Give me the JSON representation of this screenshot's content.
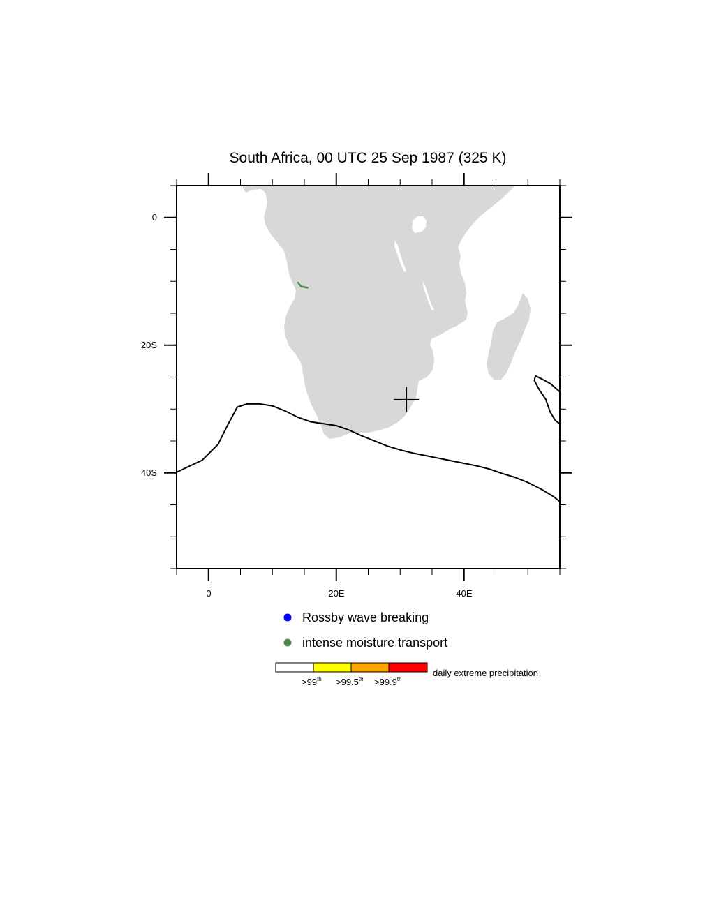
{
  "title": "South Africa, 00 UTC 25 Sep 1987 (325 K)",
  "map": {
    "lon_range": [
      -5,
      55
    ],
    "lat_range": [
      -55,
      5
    ],
    "x_ticks": [
      {
        "lon": 0,
        "label": "0"
      },
      {
        "lon": 20,
        "label": "20E"
      },
      {
        "lon": 40,
        "label": "40E"
      }
    ],
    "y_ticks": [
      {
        "lat": 0,
        "label": "0"
      },
      {
        "lat": -20,
        "label": "20S"
      },
      {
        "lat": -40,
        "label": "40S"
      }
    ],
    "land_color": "#d8d8d8",
    "cross_marker": {
      "lon": 31,
      "lat": -28.5
    },
    "moisture_transport_path": [
      [
        14,
        -10.2
      ],
      [
        14.5,
        -10.8
      ],
      [
        15.5,
        -11
      ]
    ],
    "moisture_color": "#4f8a4f",
    "contour_main": [
      [
        -5,
        -39.9
      ],
      [
        -1,
        -38
      ],
      [
        1.5,
        -35.5
      ],
      [
        3,
        -32.5
      ],
      [
        4.5,
        -29.7
      ],
      [
        6,
        -29.2
      ],
      [
        8,
        -29.2
      ],
      [
        10,
        -29.5
      ],
      [
        12,
        -30.3
      ],
      [
        14,
        -31.3
      ],
      [
        16,
        -32
      ],
      [
        18,
        -32.3
      ],
      [
        20,
        -32.6
      ],
      [
        22,
        -33.3
      ],
      [
        24,
        -34.2
      ],
      [
        26,
        -35
      ],
      [
        28,
        -35.8
      ],
      [
        30,
        -36.4
      ],
      [
        32,
        -36.9
      ],
      [
        34,
        -37.3
      ],
      [
        36,
        -37.7
      ],
      [
        38,
        -38.1
      ],
      [
        40,
        -38.5
      ],
      [
        42,
        -38.9
      ],
      [
        44,
        -39.4
      ],
      [
        46,
        -40.1
      ],
      [
        48,
        -40.7
      ],
      [
        50,
        -41.5
      ],
      [
        52,
        -42.5
      ],
      [
        54,
        -43.7
      ],
      [
        55,
        -44.5
      ]
    ],
    "contour_east": [
      [
        55,
        -27.3
      ],
      [
        53.5,
        -26
      ],
      [
        52,
        -25.2
      ],
      [
        51.2,
        -24.8
      ],
      [
        51,
        -25.5
      ],
      [
        51.8,
        -27
      ],
      [
        52.8,
        -28.5
      ],
      [
        53.5,
        -30.5
      ],
      [
        54.3,
        -31.8
      ],
      [
        55,
        -32.3
      ]
    ]
  },
  "legend": {
    "items": [
      {
        "label": "Rossby wave breaking",
        "color": "#0000ff"
      },
      {
        "label": "intense moisture transport",
        "color": "#4f8a4f"
      }
    ]
  },
  "colorbar": {
    "boxes": [
      "#ffffff",
      "#ffff00",
      "#ffa500",
      "#ff0000"
    ],
    "labels": [
      ">99",
      ">99.5",
      ">99.9"
    ],
    "superscript": "th",
    "caption": "daily extreme precipitation"
  }
}
